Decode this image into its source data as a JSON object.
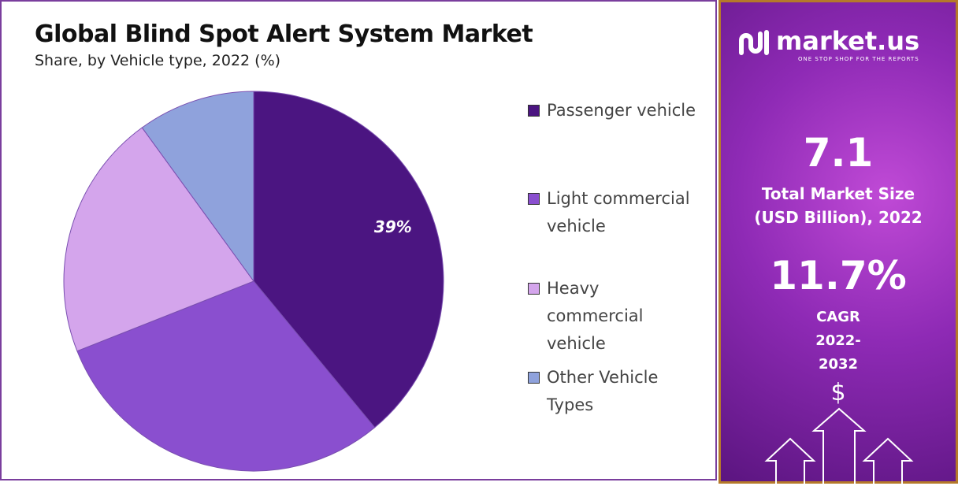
{
  "chart_data": {
    "type": "pie",
    "title": "Global Blind Spot Alert System Market",
    "subtitle": "Share, by Vehicle type, 2022 (%)",
    "categories": [
      "Passenger vehicle",
      "Light commercial vehicle",
      "Heavy commercial vehicle",
      "Other Vehicle Types"
    ],
    "values": [
      39,
      30,
      21,
      10
    ],
    "value_labels": [
      "39%",
      null,
      null,
      null
    ],
    "colors": [
      "#4b1581",
      "#8a4fcf",
      "#d4a5ec",
      "#8fa2dc"
    ],
    "legend": "right"
  },
  "sidebar": {
    "brand": "market.us",
    "tagline": "ONE STOP SHOP FOR THE REPORTS",
    "market_size": "7.1",
    "market_size_label": "Total Market Size (USD Billion), 2022",
    "cagr": "11.7%",
    "cagr_label": "CAGR 2022-2032",
    "icon": "$"
  }
}
